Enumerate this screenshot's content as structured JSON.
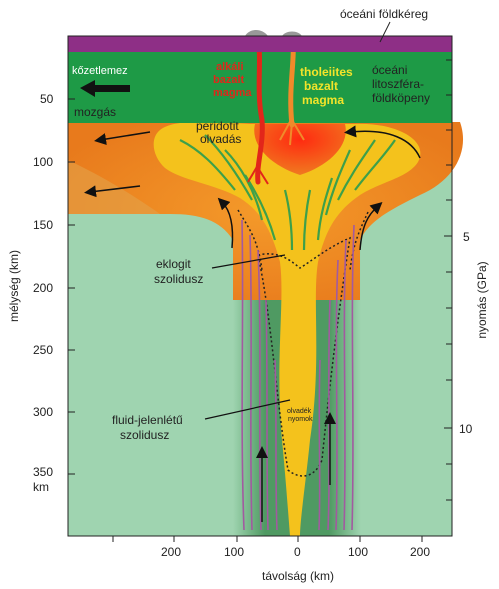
{
  "labels": {
    "oceanic_crust": "óceáni földkéreg",
    "plate_motion_1": "kőzetlemez",
    "plate_motion_2": "mozgás",
    "alkali_1": "alkáli",
    "alkali_2": "bazalt",
    "alkali_3": "magma",
    "tholeiite_1": "tholeiites",
    "tholeiite_2": "bazalt",
    "tholeiite_3": "magma",
    "lithosphere_1": "óceáni",
    "lithosphere_2": "litoszféra-",
    "lithosphere_3": "földköpeny",
    "peridotite_1": "peridotit",
    "peridotite_2": "olvadás",
    "eclogite_1": "eklogit",
    "eclogite_2": "szolidusz",
    "fluid_1": "fluid-jelenlétű",
    "fluid_2": "szolidusz",
    "melt_traces_1": "olvadék",
    "melt_traces_2": "nyomok"
  },
  "axes": {
    "left_title": "mélység (km)",
    "left_ticks": [
      "50",
      "100",
      "150",
      "200",
      "250",
      "300",
      "350"
    ],
    "left_unit": "km",
    "right_title": "nyomás (GPa)",
    "right_ticks": [
      "5",
      "10"
    ],
    "bottom_title": "távolság (km)",
    "bottom_ticks": [
      "200",
      "100",
      "0",
      "100",
      "200"
    ]
  },
  "colors": {
    "crust": "#8e2f86",
    "lithosphere": "#1e9a46",
    "asthenosphere": "#9fd4b0",
    "plume_column": "#4f9a62",
    "plume_head": "#f4c21c",
    "hot_halo": "#ef8a22",
    "red_core": "#e2261a",
    "purple_streak": "#a25aa0",
    "green_streak": "#3da04a"
  }
}
